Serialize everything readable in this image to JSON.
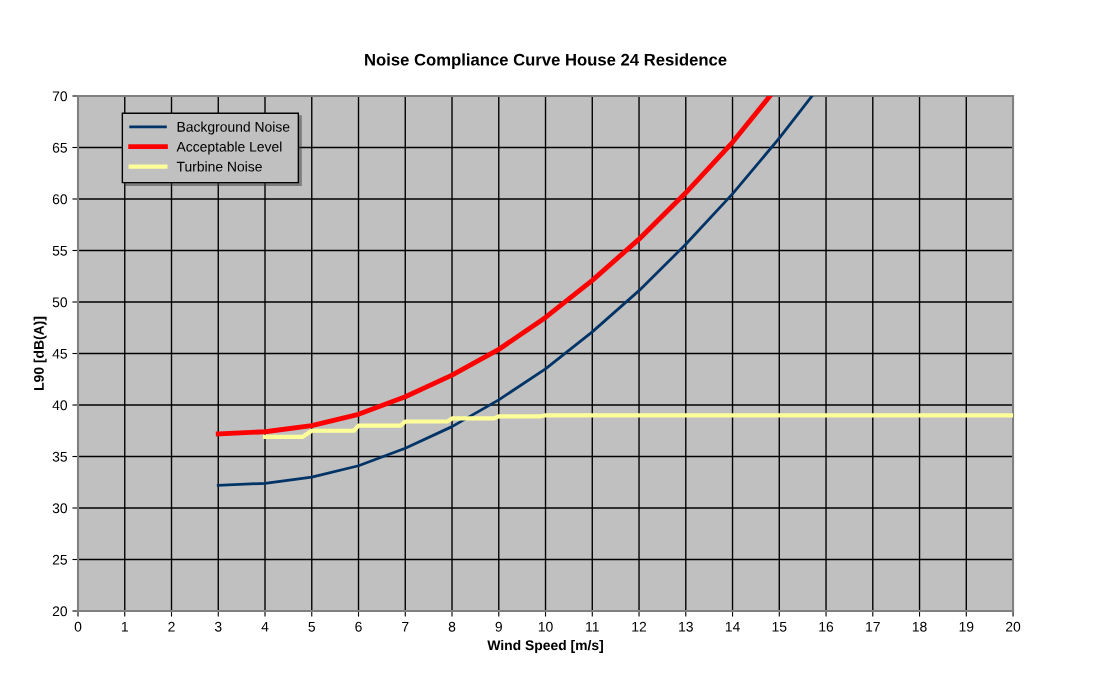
{
  "chart_data": {
    "type": "line",
    "title": "Noise Compliance Curve House 24 Residence",
    "xlabel": "Wind Speed [m/s]",
    "ylabel": "L90 [dB(A)]",
    "xlim": [
      0,
      20
    ],
    "ylim": [
      20,
      70
    ],
    "xticks": [
      0,
      1,
      2,
      3,
      4,
      5,
      6,
      7,
      8,
      9,
      10,
      11,
      12,
      13,
      14,
      15,
      16,
      17,
      18,
      19,
      20
    ],
    "yticks": [
      20,
      25,
      30,
      35,
      40,
      45,
      50,
      55,
      60,
      65,
      70
    ],
    "grid": true,
    "legend": "top left",
    "marker": "none",
    "line_style": "solid",
    "series": [
      {
        "name": "Background Noise",
        "color": "#003366",
        "x": [
          3,
          4,
          5,
          6,
          7,
          8,
          9,
          10,
          11,
          12,
          13,
          14,
          15,
          15.7
        ],
        "values": [
          32.2,
          32.4,
          33.0,
          34.1,
          35.8,
          37.9,
          40.5,
          43.5,
          47.1,
          51.1,
          55.6,
          60.5,
          65.9,
          70
        ]
      },
      {
        "name": "Acceptable Level",
        "color": "#ff0000",
        "x": [
          3,
          4,
          5,
          6,
          7,
          8,
          9,
          10,
          11,
          12,
          13,
          14,
          14.8
        ],
        "values": [
          37.2,
          37.4,
          38.0,
          39.1,
          40.8,
          42.9,
          45.4,
          48.5,
          52.1,
          56.1,
          60.6,
          65.5,
          70
        ]
      },
      {
        "name": "Turbine Noise",
        "color": "#ffff99",
        "x": [
          4,
          4.8,
          5,
          5.9,
          6,
          6.9,
          7,
          7.9,
          8,
          8.9,
          9,
          9.9,
          10,
          20
        ],
        "values": [
          36.9,
          36.9,
          37.5,
          37.5,
          38.0,
          38.0,
          38.4,
          38.4,
          38.7,
          38.7,
          38.9,
          38.9,
          39.0,
          39.0
        ]
      }
    ]
  }
}
